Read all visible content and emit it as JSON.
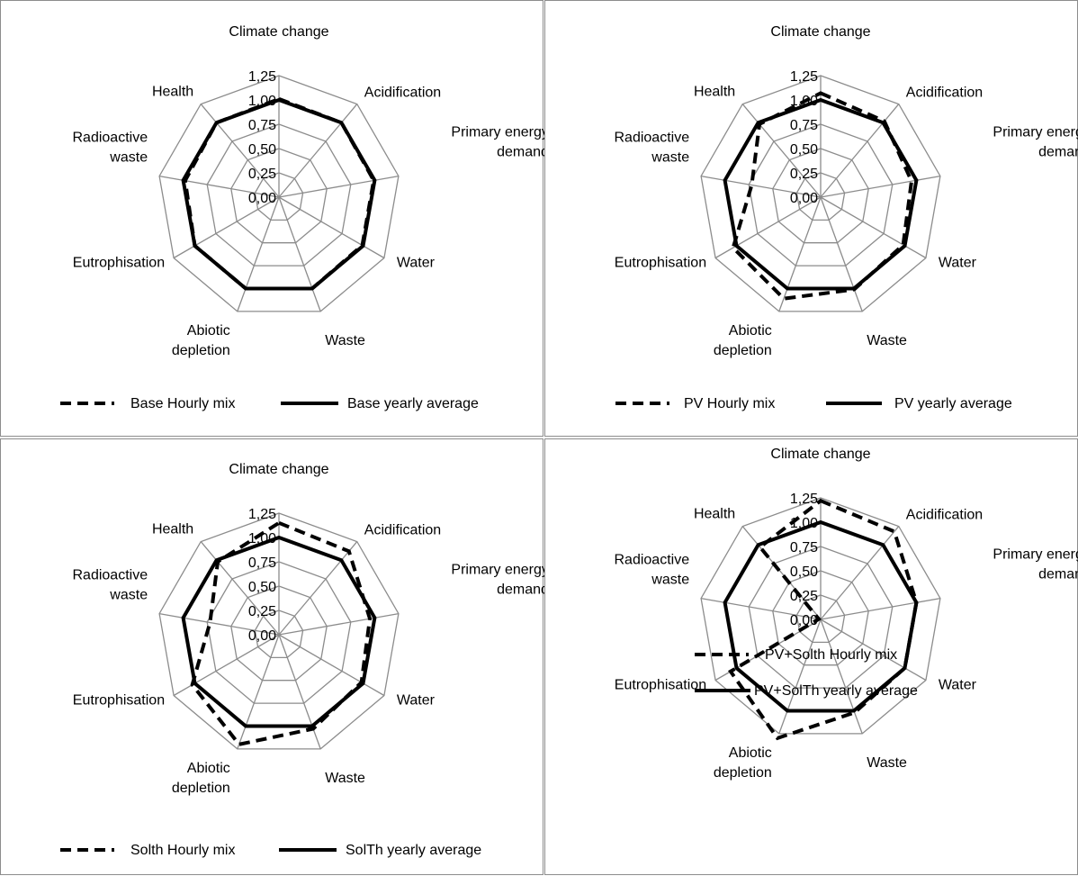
{
  "chart_data": [
    {
      "type": "radar",
      "categories": [
        "Climate change",
        "Acidification",
        "Primary energy demand",
        "Water",
        "Waste",
        "Abiotic depletion",
        "Eutrophisation",
        "Radioactive waste",
        "Health"
      ],
      "category_lines": [
        [
          "Climate change"
        ],
        [
          "Acidification"
        ],
        [
          "Primary energy",
          "demand"
        ],
        [
          "Water"
        ],
        [
          "Waste"
        ],
        [
          "Abiotic",
          "depletion"
        ],
        [
          "Eutrophisation"
        ],
        [
          "Radioactive",
          "waste"
        ],
        [
          "Health"
        ]
      ],
      "rlim": [
        0,
        1.25
      ],
      "ticks": [
        "0,00",
        "0,25",
        "0,50",
        "0,75",
        "1,00",
        "1,25"
      ],
      "series": [
        {
          "name": "Base Hourly mix",
          "style": "dashed",
          "values": [
            1.01,
            1.0,
            0.99,
            0.99,
            1.0,
            1.0,
            1.0,
            0.98,
            1.0
          ]
        },
        {
          "name": "Base yearly average",
          "style": "solid",
          "values": [
            1.0,
            1.0,
            1.0,
            1.0,
            1.0,
            1.0,
            1.0,
            1.0,
            1.0
          ]
        }
      ],
      "legend_position": "bottom"
    },
    {
      "type": "radar",
      "categories": [
        "Climate change",
        "Acidification",
        "Primary energy demand",
        "Water",
        "Waste",
        "Abiotic depletion",
        "Eutrophisation",
        "Radioactive waste",
        "Health"
      ],
      "category_lines": [
        [
          "Climate change"
        ],
        [
          "Acidification"
        ],
        [
          "Primary energy",
          "demand"
        ],
        [
          "Water"
        ],
        [
          "Waste"
        ],
        [
          "Abiotic",
          "depletion"
        ],
        [
          "Eutrophisation"
        ],
        [
          "Radioactive",
          "waste"
        ],
        [
          "Health"
        ]
      ],
      "rlim": [
        0,
        1.25
      ],
      "ticks": [
        "0,00",
        "0,25",
        "0,50",
        "0,75",
        "1,00",
        "1,25"
      ],
      "series": [
        {
          "name": "PV Hourly mix",
          "style": "dashed",
          "values": [
            1.07,
            1.02,
            0.95,
            0.98,
            1.01,
            1.11,
            1.04,
            0.72,
            0.98
          ]
        },
        {
          "name": "PV yearly average",
          "style": "solid",
          "values": [
            1.0,
            1.0,
            1.0,
            1.0,
            1.0,
            1.0,
            1.0,
            1.0,
            1.0
          ]
        }
      ],
      "legend_position": "bottom"
    },
    {
      "type": "radar",
      "categories": [
        "Climate change",
        "Acidification",
        "Primary energy demand",
        "Water",
        "Waste",
        "Abiotic depletion",
        "Eutrophisation",
        "Radioactive waste",
        "Health"
      ],
      "category_lines": [
        [
          "Climate change"
        ],
        [
          "Acidification"
        ],
        [
          "Primary energy",
          "demand"
        ],
        [
          "Water"
        ],
        [
          "Waste"
        ],
        [
          "Abiotic",
          "depletion"
        ],
        [
          "Eutrophisation"
        ],
        [
          "Radioactive",
          "waste"
        ],
        [
          "Health"
        ]
      ],
      "rlim": [
        0,
        1.25
      ],
      "ticks": [
        "0,00",
        "0,25",
        "0,50",
        "0,75",
        "1,00",
        "1,25"
      ],
      "series": [
        {
          "name": "Solth Hourly mix",
          "style": "dashed",
          "values": [
            1.15,
            1.12,
            0.95,
            0.98,
            1.03,
            1.2,
            1.03,
            0.72,
            0.98
          ]
        },
        {
          "name": "SolTh yearly average",
          "style": "solid",
          "values": [
            1.0,
            1.0,
            1.0,
            1.0,
            1.0,
            1.0,
            1.0,
            1.0,
            1.0
          ]
        }
      ],
      "legend_position": "bottom"
    },
    {
      "type": "radar",
      "categories": [
        "Climate change",
        "Acidification",
        "Primary energy demand",
        "Water",
        "Waste",
        "Abiotic depletion",
        "Eutrophisation",
        "Radioactive waste",
        "Health"
      ],
      "category_lines": [
        [
          "Climate change"
        ],
        [
          "Acidification"
        ],
        [
          "Primary energy",
          "demand"
        ],
        [
          "Water"
        ],
        [
          "Waste"
        ],
        [
          "Abiotic",
          "depletion"
        ],
        [
          "Eutrophisation"
        ],
        [
          "Radioactive",
          "waste"
        ],
        [
          "Health"
        ]
      ],
      "rlim": [
        0,
        1.25
      ],
      "ticks": [
        "0,00",
        "0,25",
        "0,50",
        "0,75",
        "1,00",
        "1,25"
      ],
      "series": [
        {
          "name": "PV+Solth Hourly mix",
          "style": "dashed",
          "values": [
            1.22,
            1.18,
            1.0,
            1.0,
            1.02,
            1.3,
            1.07,
            0.02,
            0.97
          ]
        },
        {
          "name": "PV+SolTh yearly average",
          "style": "solid",
          "values": [
            1.0,
            1.0,
            1.0,
            1.0,
            1.0,
            1.0,
            1.0,
            1.0,
            1.0
          ]
        }
      ],
      "legend_position": "bottom"
    }
  ]
}
